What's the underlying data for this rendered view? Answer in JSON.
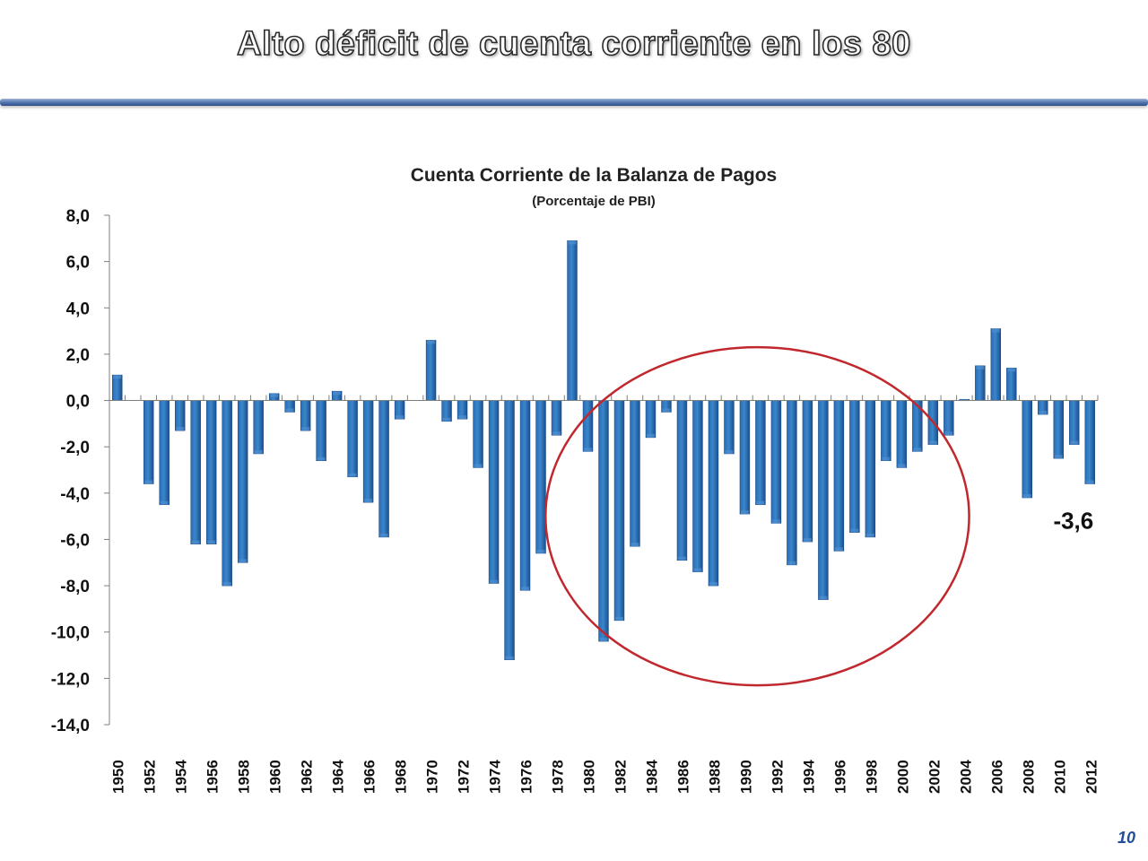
{
  "slide": {
    "title": "Alto déficit de cuenta corriente en los 80",
    "page_number": "10"
  },
  "colors": {
    "bar": "#1f5fa3",
    "bar_highlight": "#4f8fd0",
    "ellipse": "#c0282d",
    "axis": "#7f7f7f"
  },
  "chart_data": {
    "type": "bar",
    "title": "Cuenta Corriente de la Balanza de Pagos",
    "subtitle": "(Porcentaje de PBI)",
    "xlabel": "",
    "ylabel": "",
    "ylim": [
      -14,
      8
    ],
    "yticks": [
      8,
      6,
      4,
      2,
      0,
      -2,
      -4,
      -6,
      -8,
      -10,
      -12,
      -14
    ],
    "ytick_labels": [
      "8,0",
      "6,0",
      "4,0",
      "2,0",
      "0,0",
      "-2,0",
      "-4,0",
      "-6,0",
      "-8,0",
      "-10,0",
      "-12,0",
      "-14,0"
    ],
    "categories": [
      "1950",
      "1951",
      "1952",
      "1953",
      "1954",
      "1955",
      "1956",
      "1957",
      "1958",
      "1959",
      "1960",
      "1961",
      "1962",
      "1963",
      "1964",
      "1965",
      "1966",
      "1967",
      "1968",
      "1969",
      "1970",
      "1971",
      "1972",
      "1973",
      "1974",
      "1975",
      "1976",
      "1977",
      "1978",
      "1979",
      "1980",
      "1981",
      "1982",
      "1983",
      "1984",
      "1985",
      "1986",
      "1987",
      "1988",
      "1989",
      "1990",
      "1991",
      "1992",
      "1993",
      "1994",
      "1995",
      "1996",
      "1997",
      "1998",
      "1999",
      "2000",
      "2001",
      "2002",
      "2003",
      "2004",
      "2005",
      "2006",
      "2007",
      "2008",
      "2009",
      "2010",
      "2011",
      "2012"
    ],
    "xtick_labels": [
      "1950",
      "1952",
      "1954",
      "1956",
      "1958",
      "1960",
      "1962",
      "1964",
      "1966",
      "1968",
      "1970",
      "1972",
      "1974",
      "1976",
      "1978",
      "1980",
      "1982",
      "1984",
      "1986",
      "1988",
      "1990",
      "1992",
      "1994",
      "1996",
      "1998",
      "2000",
      "2002",
      "2004",
      "2006",
      "2008",
      "2010",
      "2012"
    ],
    "values": [
      1.1,
      0.0,
      -3.6,
      -4.5,
      -1.3,
      -6.2,
      -6.2,
      -8.0,
      -7.0,
      -2.3,
      0.3,
      -0.5,
      -1.3,
      -2.6,
      0.4,
      -3.3,
      -4.4,
      -5.9,
      -0.8,
      0.0,
      2.6,
      -0.9,
      -0.8,
      -2.9,
      -7.9,
      -11.2,
      -8.2,
      -6.6,
      -1.5,
      6.9,
      -2.2,
      -10.4,
      -9.5,
      -6.3,
      -1.6,
      -0.5,
      -6.9,
      -7.4,
      -8.0,
      -2.3,
      -4.9,
      -4.5,
      -5.3,
      -7.1,
      -6.1,
      -8.6,
      -6.5,
      -5.7,
      -5.9,
      -2.6,
      -2.9,
      -2.2,
      -1.9,
      -1.5,
      0.05,
      1.5,
      3.1,
      1.4,
      -4.2,
      -0.6,
      -2.5,
      -1.9,
      -3.6
    ],
    "annotations": [
      {
        "text": "-3,6",
        "category": "2012",
        "value": -3.6
      }
    ],
    "highlight_ellipse": {
      "from_category": "1979",
      "to_category": "2004",
      "y_top": 2.3,
      "y_bottom": -12.3
    },
    "grid": false,
    "legend": "none"
  }
}
